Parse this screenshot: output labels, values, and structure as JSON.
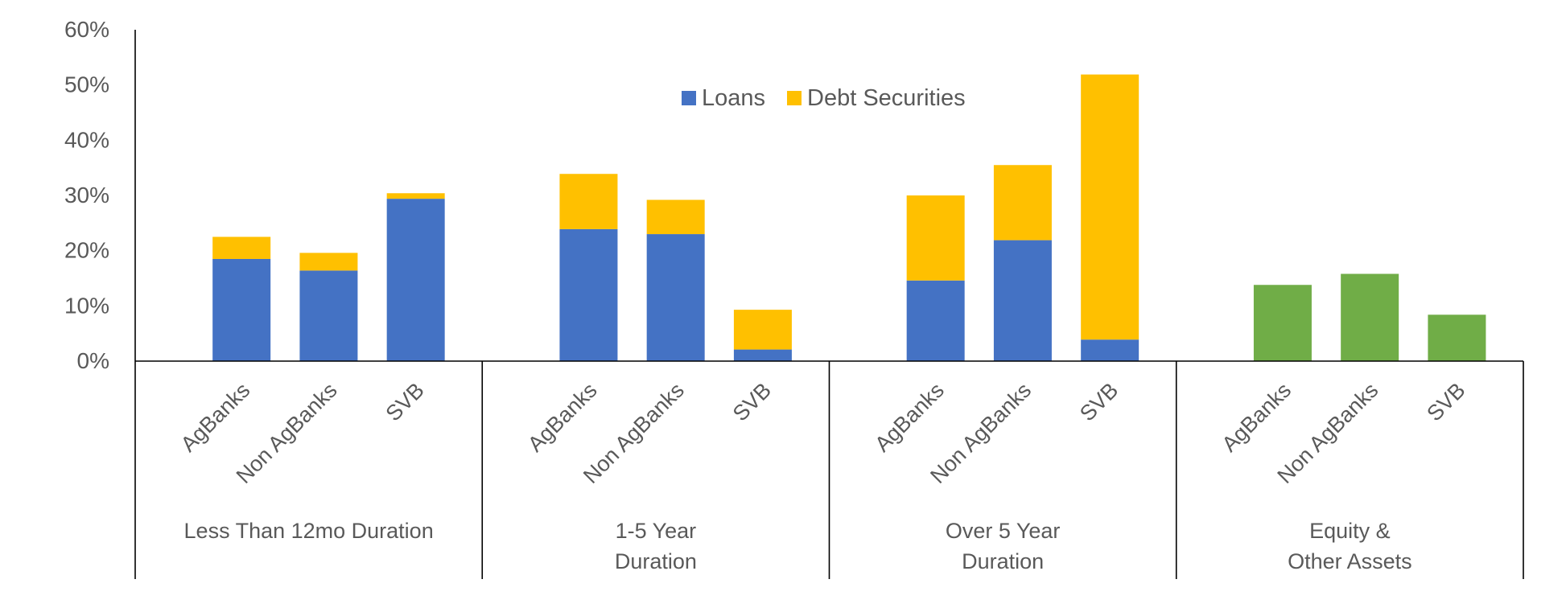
{
  "chart_data": {
    "type": "bar",
    "stacked": true,
    "ylim": [
      0,
      60
    ],
    "y_ticks": [
      0,
      10,
      20,
      30,
      40,
      50,
      60
    ],
    "y_tick_labels": [
      "0%",
      "10%",
      "20%",
      "30%",
      "40%",
      "50%",
      "60%"
    ],
    "legend_position": "top-center",
    "legend": [
      {
        "name": "Loans",
        "color": "#4472C4"
      },
      {
        "name": "Debt Securities",
        "color": "#FFC000"
      }
    ],
    "groups": [
      {
        "label": "Less Than 12mo Duration",
        "label_lines": [
          "Less Than 12mo Duration"
        ],
        "bars": [
          {
            "category": "AgBanks",
            "segments": [
              {
                "series": "Loans",
                "value": 18.5,
                "color": "#4472C4"
              },
              {
                "series": "Debt Securities",
                "value": 4.0,
                "color": "#FFC000"
              }
            ]
          },
          {
            "category": "Non AgBanks",
            "segments": [
              {
                "series": "Loans",
                "value": 16.4,
                "color": "#4472C4"
              },
              {
                "series": "Debt Securities",
                "value": 3.2,
                "color": "#FFC000"
              }
            ]
          },
          {
            "category": "SVB",
            "segments": [
              {
                "series": "Loans",
                "value": 29.4,
                "color": "#4472C4"
              },
              {
                "series": "Debt Securities",
                "value": 1.0,
                "color": "#FFC000"
              }
            ]
          }
        ]
      },
      {
        "label": "1-5 Year Duration",
        "label_lines": [
          "1-5 Year",
          "Duration"
        ],
        "bars": [
          {
            "category": "AgBanks",
            "segments": [
              {
                "series": "Loans",
                "value": 23.9,
                "color": "#4472C4"
              },
              {
                "series": "Debt Securities",
                "value": 10.0,
                "color": "#FFC000"
              }
            ]
          },
          {
            "category": "Non AgBanks",
            "segments": [
              {
                "series": "Loans",
                "value": 23.0,
                "color": "#4472C4"
              },
              {
                "series": "Debt Securities",
                "value": 6.2,
                "color": "#FFC000"
              }
            ]
          },
          {
            "category": "SVB",
            "segments": [
              {
                "series": "Loans",
                "value": 2.1,
                "color": "#4472C4"
              },
              {
                "series": "Debt Securities",
                "value": 7.2,
                "color": "#FFC000"
              }
            ]
          }
        ]
      },
      {
        "label": "Over 5 Year Duration",
        "label_lines": [
          "Over 5 Year",
          "Duration"
        ],
        "bars": [
          {
            "category": "AgBanks",
            "segments": [
              {
                "series": "Loans",
                "value": 14.6,
                "color": "#4472C4"
              },
              {
                "series": "Debt Securities",
                "value": 15.4,
                "color": "#FFC000"
              }
            ]
          },
          {
            "category": "Non AgBanks",
            "segments": [
              {
                "series": "Loans",
                "value": 21.9,
                "color": "#4472C4"
              },
              {
                "series": "Debt Securities",
                "value": 13.6,
                "color": "#FFC000"
              }
            ]
          },
          {
            "category": "SVB",
            "segments": [
              {
                "series": "Loans",
                "value": 3.9,
                "color": "#4472C4"
              },
              {
                "series": "Debt Securities",
                "value": 48.0,
                "color": "#FFC000"
              }
            ]
          }
        ]
      },
      {
        "label": "Equity & Other Assets",
        "label_lines": [
          "Equity &",
          "Other Assets"
        ],
        "bars": [
          {
            "category": "AgBanks",
            "segments": [
              {
                "series": "Equity & Other Assets",
                "value": 13.8,
                "color": "#70AD47"
              }
            ]
          },
          {
            "category": "Non AgBanks",
            "segments": [
              {
                "series": "Equity & Other Assets",
                "value": 15.8,
                "color": "#70AD47"
              }
            ]
          },
          {
            "category": "SVB",
            "segments": [
              {
                "series": "Equity & Other Assets",
                "value": 8.4,
                "color": "#70AD47"
              }
            ]
          }
        ]
      }
    ]
  }
}
